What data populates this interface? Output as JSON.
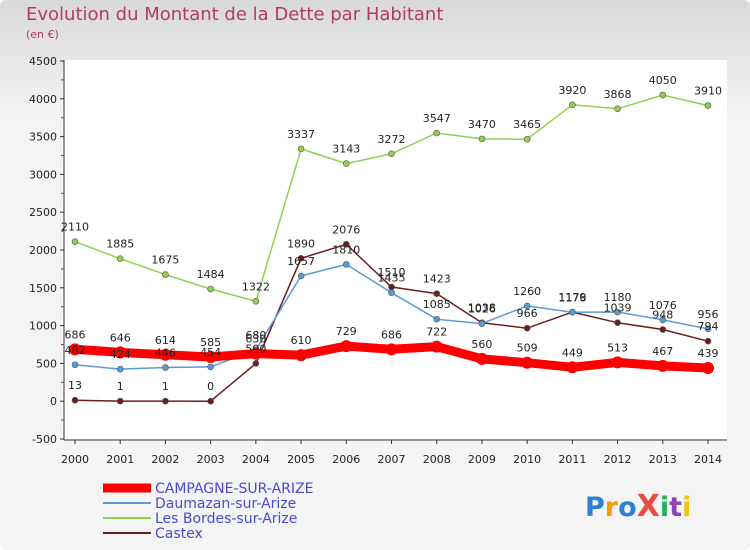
{
  "title": "Evolution du Montant de la Dette par Habitant",
  "unit": "(en €)",
  "logo": "ProXiti",
  "chart_data": {
    "type": "line",
    "title": "Evolution du Montant de la Dette par Habitant",
    "ylabel": "(en €)",
    "xlabel": "",
    "ylim": [
      -500,
      4500
    ],
    "yticks": [
      -500,
      0,
      500,
      1000,
      1500,
      2000,
      2500,
      3000,
      3500,
      4000,
      4500
    ],
    "x": [
      2000,
      2001,
      2002,
      2003,
      2004,
      2005,
      2006,
      2007,
      2008,
      2009,
      2010,
      2011,
      2012,
      2013,
      2014
    ],
    "grid": false,
    "legend_position": "bottom-left",
    "series": [
      {
        "name": "CAMPAGNE-SUR-ARIZE",
        "color": "#ff0000",
        "values": [
          686,
          646,
          614,
          585,
          630,
          610,
          729,
          686,
          722,
          560,
          509,
          449,
          513,
          467,
          439
        ]
      },
      {
        "name": "Daumazan-sur-Arize",
        "color": "#5b9bd5",
        "values": [
          482,
          424,
          446,
          454,
          680,
          1657,
          1810,
          1435,
          1085,
          1026,
          1260,
          1176,
          1180,
          1076,
          956
        ]
      },
      {
        "name": "Les Bordes-sur-Arize",
        "color": "#8fd14f",
        "values": [
          2110,
          1885,
          1675,
          1484,
          1322,
          3337,
          3143,
          3272,
          3547,
          3470,
          3465,
          3920,
          3868,
          4050,
          3910
        ]
      },
      {
        "name": "Castex",
        "color": "#6b1e1e",
        "values": [
          13,
          1,
          1,
          0,
          500,
          1890,
          2076,
          1510,
          1423,
          1038,
          966,
          1179,
          1039,
          948,
          794
        ]
      }
    ],
    "point_labels": {
      "CAMPAGNE-SUR-ARIZE": [
        "686",
        "646",
        "614",
        "585",
        "630",
        "610",
        "729",
        "686",
        "722",
        "560",
        "509",
        "449",
        "513",
        "467",
        "439"
      ],
      "Daumazan-sur-Arize": [
        "482",
        "424",
        "446",
        "454",
        "680",
        "1657",
        "1810",
        "1435",
        "1085",
        "1026",
        "1260",
        "1176",
        "1180",
        "1076",
        "956"
      ],
      "Les Bordes-sur-Arize": [
        "2110",
        "1885",
        "1675",
        "1484",
        "1322",
        "3337",
        "3143",
        "3272",
        "3547",
        "3470",
        "3465",
        "3920",
        "3868",
        "4050",
        "3910"
      ],
      "Castex": [
        "13",
        "1",
        "1",
        "0",
        "500",
        "1890",
        "2076",
        "1510",
        "1423",
        "1038",
        "966",
        "1179",
        "1039",
        "948",
        "794"
      ]
    }
  }
}
